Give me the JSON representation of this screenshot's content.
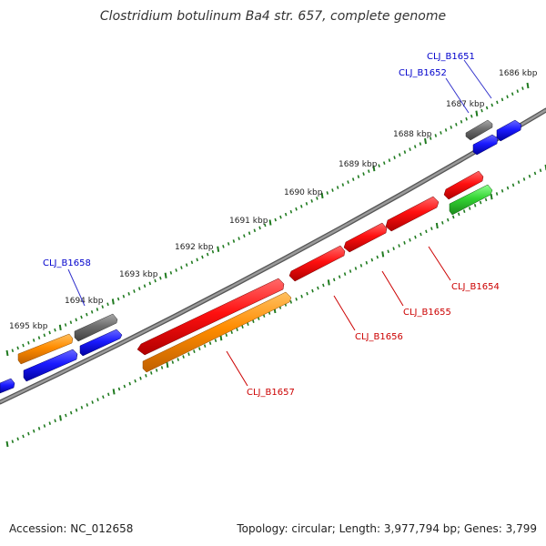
{
  "title": "Clostridium botulinum Ba4 str. 657, complete genome",
  "footer": {
    "accession": "Accession: NC_012658",
    "topology": "Topology: circular; Length: 3,977,794 bp; Genes: 3,799"
  },
  "kbp_labels": [
    "1686 kbp",
    "1687 kbp",
    "1688 kbp",
    "1689 kbp",
    "1690 kbp",
    "1691 kbp",
    "1692 kbp",
    "1693 kbp",
    "1694 kbp",
    "1695 kbp"
  ],
  "gene_labels_top": [
    "CLJ_B1651",
    "CLJ_B1652",
    "CLJ_B1658"
  ],
  "gene_labels_bottom": [
    "CLJ_B1654",
    "CLJ_B1655",
    "CLJ_B1656",
    "CLJ_B1657"
  ],
  "colors": {
    "backbone": "#7a7a7a",
    "tick": "#1f7a1f",
    "red": "#e00000",
    "orange": "#f08a00",
    "blue": "#1010e0",
    "gray": "#6a6a6a",
    "green": "#33cc33",
    "label_blue": "#0000cc",
    "label_red": "#cc0000"
  }
}
